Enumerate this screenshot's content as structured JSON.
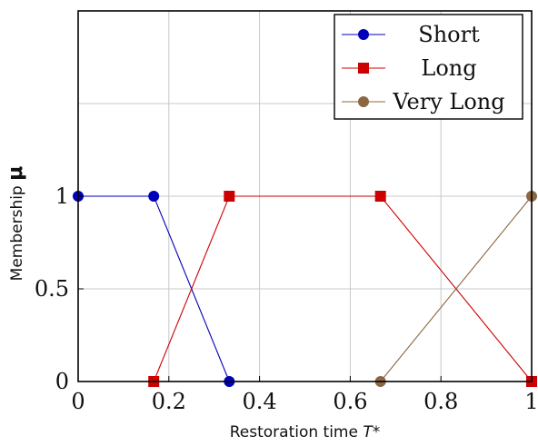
{
  "chart_data": {
    "type": "line",
    "xlabel": "Restoration time",
    "xlabel_var": "T*",
    "ylabel": "Membership",
    "ylabel_symbol": "μ",
    "xlim": [
      0,
      1
    ],
    "ylim": [
      0,
      2
    ],
    "xticks": [
      0,
      0.2,
      0.4,
      0.6,
      0.8,
      1
    ],
    "xtick_labels": [
      "0",
      "0.2",
      "0.4",
      "0.6",
      "0.8",
      "1"
    ],
    "yticks": [
      0,
      0.5,
      1
    ],
    "ytick_labels": [
      "0",
      "0.5",
      "1"
    ],
    "grid": true,
    "legend_position": "top-right",
    "series": [
      {
        "name": "Short",
        "color": "#0000b8",
        "marker": "circle",
        "x": [
          0,
          0.1667,
          0.3333
        ],
        "y": [
          1,
          1,
          0
        ]
      },
      {
        "name": "Long",
        "color": "#cc0000",
        "marker": "square",
        "x": [
          0.1667,
          0.3333,
          0.6667,
          1
        ],
        "y": [
          0,
          1,
          1,
          0
        ]
      },
      {
        "name": "Very Long",
        "color": "#8b6742",
        "marker": "circle",
        "x": [
          0.6667,
          1
        ],
        "y": [
          0,
          1
        ]
      }
    ]
  }
}
